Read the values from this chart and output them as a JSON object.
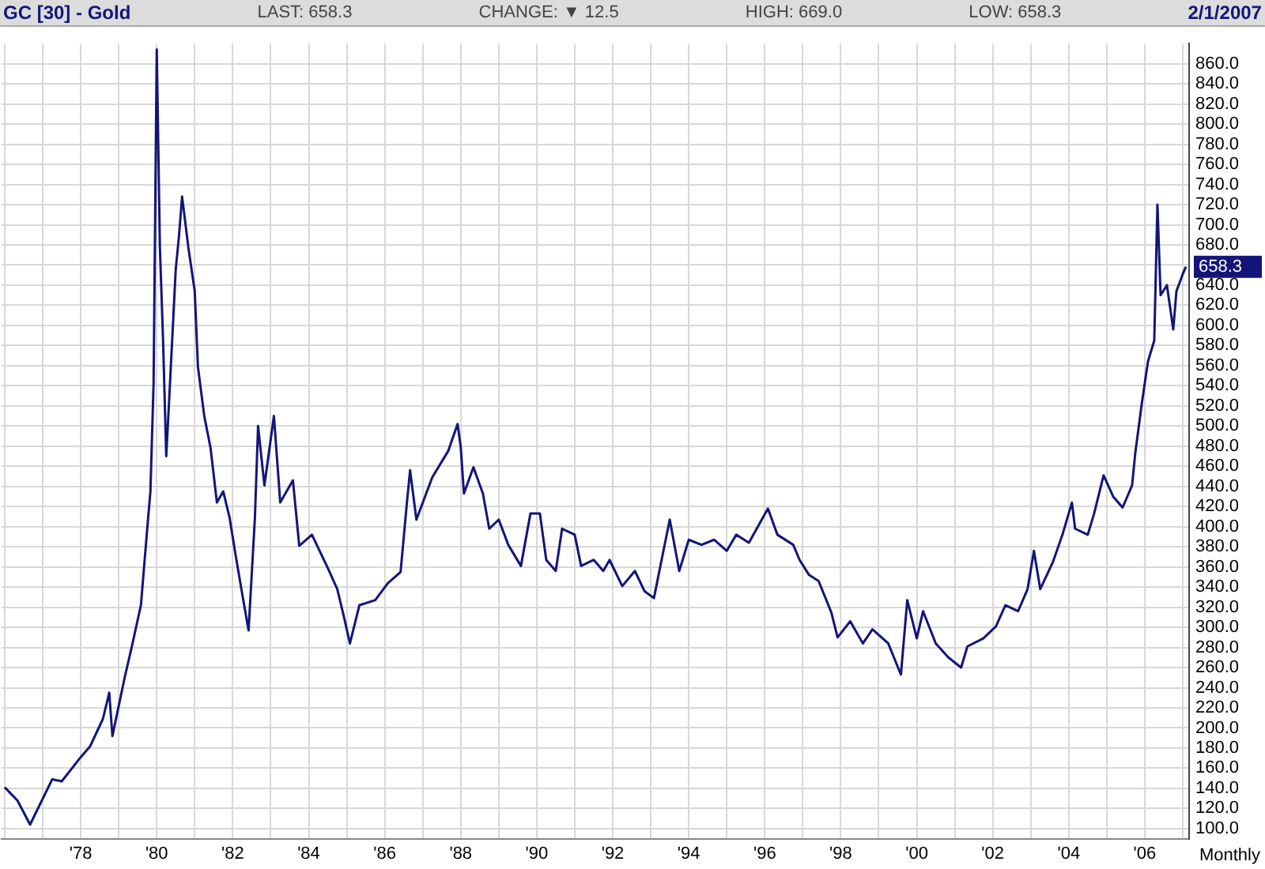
{
  "chart_data": {
    "type": "line",
    "title": "GC [30] - Gold",
    "annotations": [
      "LAST: 658.3",
      "CHANGE: ▼ 12.5",
      "HIGH: 669.0",
      "LOW: 658.3",
      "2/1/2007",
      "658.3",
      "Monthly"
    ],
    "x": [
      "1976-01",
      "1976-05",
      "1976-09",
      "1977-04",
      "1977-07",
      "1978-01",
      "1978-04",
      "1978-08",
      "1978-10",
      "1978-11",
      "1979-03",
      "1979-05",
      "1979-08",
      "1979-10",
      "1979-11",
      "1979-12",
      "1980-01",
      "1980-02",
      "1980-03",
      "1980-04",
      "1980-05",
      "1980-07",
      "1980-08",
      "1980-09",
      "1980-11",
      "1981-01",
      "1981-02",
      "1981-04",
      "1981-06",
      "1981-08",
      "1981-10",
      "1981-12",
      "1982-02",
      "1982-04",
      "1982-06",
      "1982-08",
      "1982-09",
      "1982-11",
      "1983-02",
      "1983-04",
      "1983-08",
      "1983-10",
      "1984-02",
      "1984-07",
      "1984-10",
      "1984-12",
      "1985-02",
      "1985-05",
      "1985-10",
      "1986-02",
      "1986-06",
      "1986-08",
      "1986-09",
      "1986-11",
      "1987-04",
      "1987-09",
      "1987-12",
      "1988-01",
      "1988-02",
      "1988-05",
      "1988-08",
      "1988-10",
      "1989-01",
      "1989-04",
      "1989-08",
      "1989-11",
      "1990-02",
      "1990-04",
      "1990-07",
      "1990-09",
      "1991-01",
      "1991-03",
      "1991-07",
      "1991-10",
      "1991-12",
      "1992-04",
      "1992-08",
      "1992-11",
      "1993-02",
      "1993-05",
      "1993-07",
      "1993-10",
      "1994-01",
      "1994-05",
      "1994-09",
      "1995-01",
      "1995-04",
      "1995-08",
      "1996-02",
      "1996-05",
      "1996-10",
      "1996-12",
      "1997-03",
      "1997-06",
      "1997-10",
      "1997-12",
      "1998-04",
      "1998-08",
      "1998-11",
      "1999-04",
      "1999-08",
      "1999-10",
      "2000-01",
      "2000-03",
      "2000-07",
      "2000-11",
      "2001-03",
      "2001-05",
      "2001-10",
      "2002-02",
      "2002-05",
      "2002-09",
      "2002-12",
      "2003-02",
      "2003-04",
      "2003-08",
      "2003-11",
      "2004-02",
      "2004-03",
      "2004-07",
      "2004-09",
      "2004-12",
      "2005-03",
      "2005-06",
      "2005-09",
      "2005-10",
      "2005-12",
      "2006-02",
      "2006-04",
      "2006-05",
      "2006-06",
      "2006-08",
      "2006-10",
      "2006-11",
      "2007-01",
      "2007-02"
    ],
    "series": [
      {
        "color": "#14147a",
        "values": [
          141,
          128,
          104,
          149,
          147,
          171,
          182,
          209,
          235,
          192,
          252,
          279,
          322,
          398,
          435,
          542,
          874,
          677,
          585,
          470,
          531,
          656,
          688,
          728,
          677,
          634,
          559,
          510,
          478,
          424,
          435,
          409,
          370,
          333,
          297,
          409,
          500,
          441,
          510,
          424,
          446,
          381,
          392,
          359,
          338,
          312,
          284,
          322,
          327,
          344,
          355,
          424,
          456,
          407,
          449,
          475,
          502,
          479,
          433,
          459,
          433,
          398,
          407,
          382,
          361,
          413,
          413,
          367,
          356,
          398,
          392,
          361,
          367,
          356,
          367,
          341,
          356,
          336,
          329,
          376,
          407,
          356,
          387,
          382,
          387,
          376,
          392,
          384,
          418,
          392,
          382,
          367,
          352,
          346,
          315,
          290,
          306,
          284,
          298,
          284,
          253,
          327,
          289,
          316,
          284,
          270,
          260,
          281,
          289,
          301,
          322,
          316,
          338,
          376,
          338,
          365,
          392,
          424,
          398,
          392,
          413,
          451,
          430,
          419,
          441,
          473,
          521,
          564,
          585,
          720,
          630,
          640,
          596,
          634,
          651,
          658.3
        ]
      }
    ],
    "xlim": [
      "1975-12",
      "2007-03"
    ],
    "xticks": [
      {
        "value": "1976",
        "label": null
      },
      {
        "value": "1977",
        "label": null
      },
      {
        "value": "1978",
        "label": "'78"
      },
      {
        "value": "1979",
        "label": null
      },
      {
        "value": "1980",
        "label": "'80"
      },
      {
        "value": "1981",
        "label": null
      },
      {
        "value": "1982",
        "label": "'82"
      },
      {
        "value": "1983",
        "label": null
      },
      {
        "value": "1984",
        "label": "'84"
      },
      {
        "value": "1985",
        "label": null
      },
      {
        "value": "1986",
        "label": "'86"
      },
      {
        "value": "1987",
        "label": null
      },
      {
        "value": "1988",
        "label": "'88"
      },
      {
        "value": "1989",
        "label": null
      },
      {
        "value": "1990",
        "label": "'90"
      },
      {
        "value": "1991",
        "label": null
      },
      {
        "value": "1992",
        "label": "'92"
      },
      {
        "value": "1993",
        "label": null
      },
      {
        "value": "1994",
        "label": "'94"
      },
      {
        "value": "1995",
        "label": null
      },
      {
        "value": "1996",
        "label": "'96"
      },
      {
        "value": "1997",
        "label": null
      },
      {
        "value": "1998",
        "label": "'98"
      },
      {
        "value": "1999",
        "label": null
      },
      {
        "value": "2000",
        "label": "'00"
      },
      {
        "value": "2001",
        "label": null
      },
      {
        "value": "2002",
        "label": "'02"
      },
      {
        "value": "2003",
        "label": null
      },
      {
        "value": "2004",
        "label": "'04"
      },
      {
        "value": "2005",
        "label": null
      },
      {
        "value": "2006",
        "label": "'06"
      },
      {
        "value": "2007",
        "label": null
      }
    ],
    "ylim": [
      90,
      880
    ],
    "yticks": [
      {
        "value": 100,
        "label": "100.0"
      },
      {
        "value": 120,
        "label": "120.0"
      },
      {
        "value": 140,
        "label": "140.0"
      },
      {
        "value": 160,
        "label": "160.0"
      },
      {
        "value": 180,
        "label": "180.0"
      },
      {
        "value": 200,
        "label": "200.0"
      },
      {
        "value": 220,
        "label": "220.0"
      },
      {
        "value": 240,
        "label": "240.0"
      },
      {
        "value": 260,
        "label": "260.0"
      },
      {
        "value": 280,
        "label": "280.0"
      },
      {
        "value": 300,
        "label": "300.0"
      },
      {
        "value": 320,
        "label": "320.0"
      },
      {
        "value": 340,
        "label": "340.0"
      },
      {
        "value": 360,
        "label": "360.0"
      },
      {
        "value": 380,
        "label": "380.0"
      },
      {
        "value": 400,
        "label": "400.0"
      },
      {
        "value": 420,
        "label": "420.0"
      },
      {
        "value": 440,
        "label": "440.0"
      },
      {
        "value": 460,
        "label": "460.0"
      },
      {
        "value": 480,
        "label": "480.0"
      },
      {
        "value": 500,
        "label": "500.0"
      },
      {
        "value": 520,
        "label": "520.0"
      },
      {
        "value": 540,
        "label": "540.0"
      },
      {
        "value": 560,
        "label": "560.0"
      },
      {
        "value": 580,
        "label": "580.0"
      },
      {
        "value": 600,
        "label": "600.0"
      },
      {
        "value": 620,
        "label": "620.0"
      },
      {
        "value": 640,
        "label": "640.0"
      },
      {
        "value": 660,
        "label": null
      },
      {
        "value": 680,
        "label": "680.0"
      },
      {
        "value": 700,
        "label": "700.0"
      },
      {
        "value": 720,
        "label": "720.0"
      },
      {
        "value": 740,
        "label": "740.0"
      },
      {
        "value": 760,
        "label": "760.0"
      },
      {
        "value": 780,
        "label": "780.0"
      },
      {
        "value": 800,
        "label": "800.0"
      },
      {
        "value": 820,
        "label": "820.0"
      },
      {
        "value": 840,
        "label": "840.0"
      },
      {
        "value": 860,
        "label": "860.0"
      }
    ],
    "grid": true,
    "legend": false,
    "marker": "none",
    "line_style": "solid"
  }
}
